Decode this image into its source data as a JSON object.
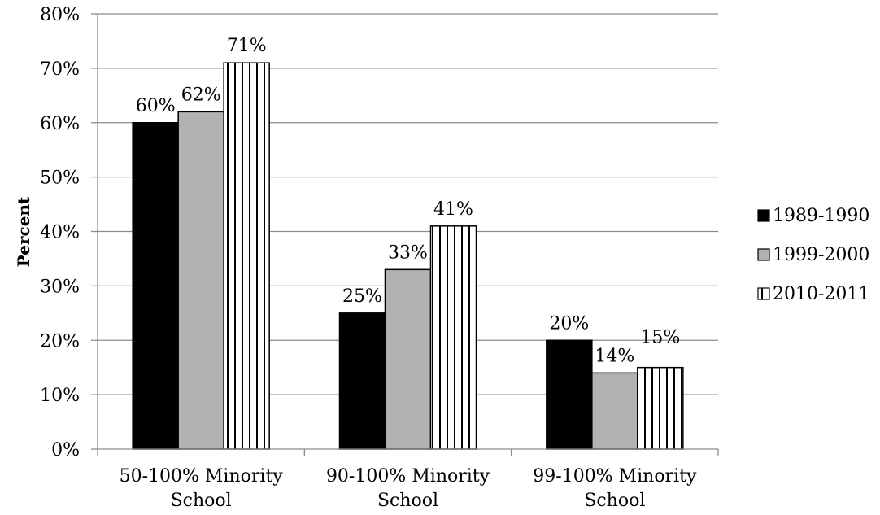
{
  "chart_data": {
    "type": "bar",
    "title": "",
    "xlabel": "",
    "ylabel": "Percent",
    "ylim": [
      0,
      80
    ],
    "y_tick_step": 10,
    "y_tick_format": "percent",
    "grid": true,
    "legend_position": "right",
    "categories": [
      [
        "50-100% Minority",
        "School"
      ],
      [
        "90-100% Minority",
        "School"
      ],
      [
        "99-100% Minority",
        "School"
      ]
    ],
    "series": [
      {
        "name": "1989-1990",
        "values": [
          60,
          25,
          20
        ],
        "labels": [
          "60%",
          "25%",
          "20%"
        ],
        "fill": "#000000",
        "pattern": "solid"
      },
      {
        "name": "1999-2000",
        "values": [
          62,
          33,
          14
        ],
        "labels": [
          "62%",
          "33%",
          "14%"
        ],
        "fill": "#b2b2b2",
        "pattern": "solid"
      },
      {
        "name": "2010-2011",
        "values": [
          71,
          41,
          15
        ],
        "labels": [
          "71%",
          "41%",
          "15%"
        ],
        "fill": "#ffffff",
        "pattern": "vertical-stripes"
      }
    ]
  }
}
